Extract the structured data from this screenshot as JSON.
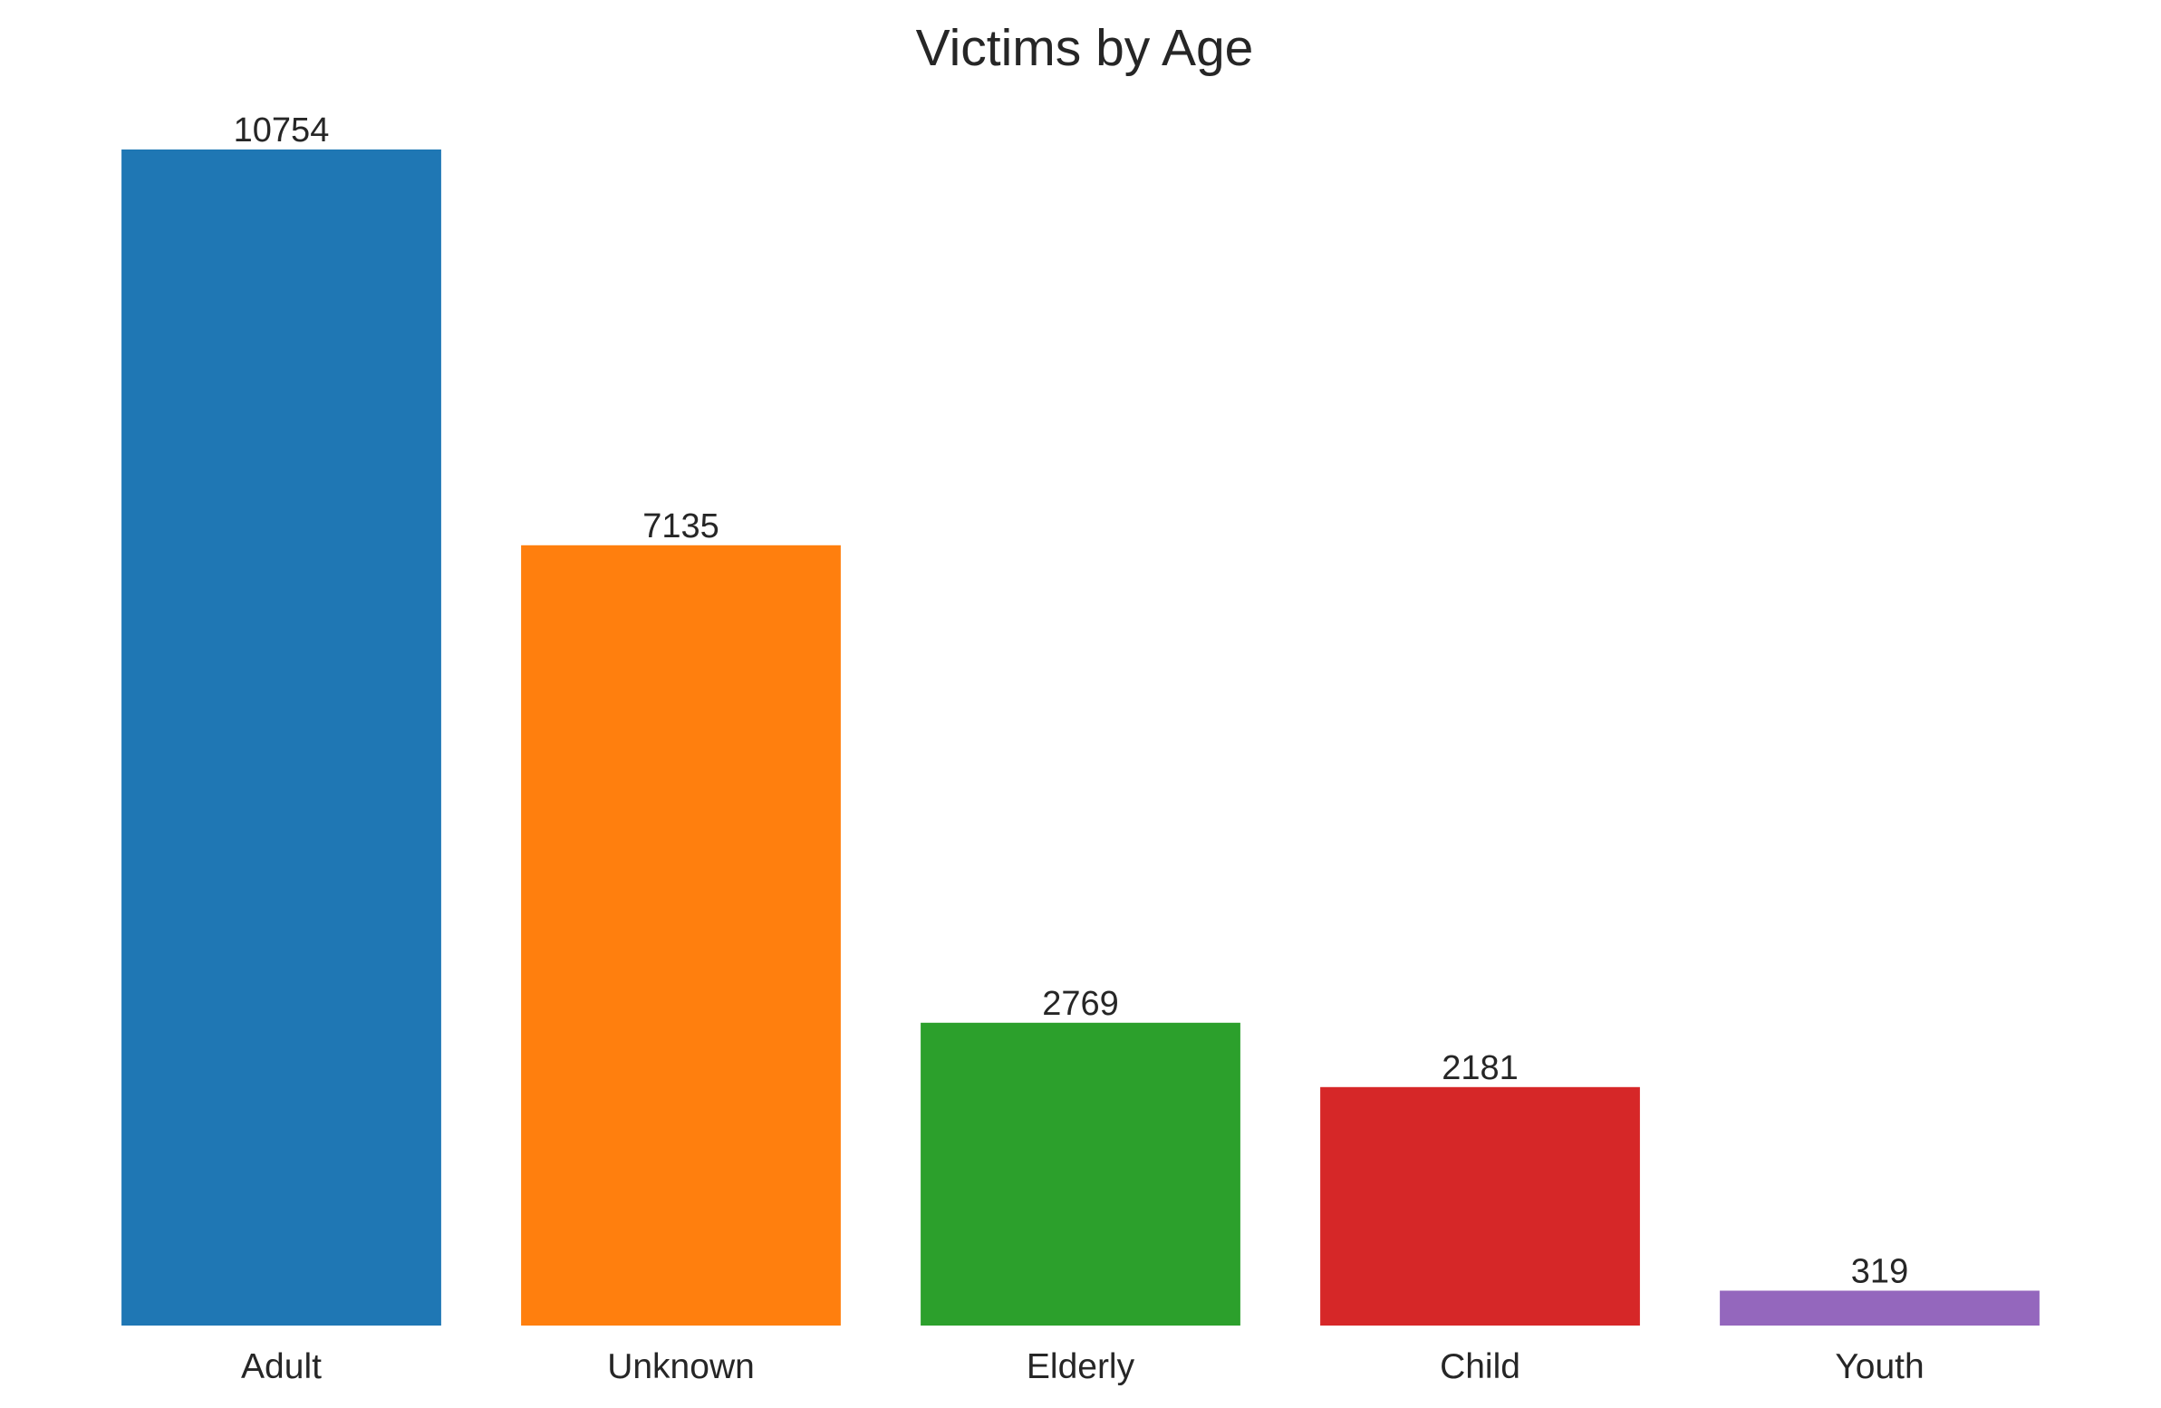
{
  "chart_data": {
    "type": "bar",
    "title": "Victims by Age",
    "xlabel": "",
    "ylabel": "",
    "categories": [
      "Adult",
      "Unknown",
      "Elderly",
      "Child",
      "Youth"
    ],
    "values": [
      10754,
      7135,
      2769,
      2181,
      319
    ],
    "value_labels": [
      "10754",
      "7135",
      "2769",
      "2181",
      "319"
    ],
    "colors": [
      "#1f77b4",
      "#ff7f0e",
      "#2ca02c",
      "#d62728",
      "#9467bd"
    ],
    "ylim": [
      0,
      10754
    ],
    "grid": false,
    "legend": "none"
  }
}
